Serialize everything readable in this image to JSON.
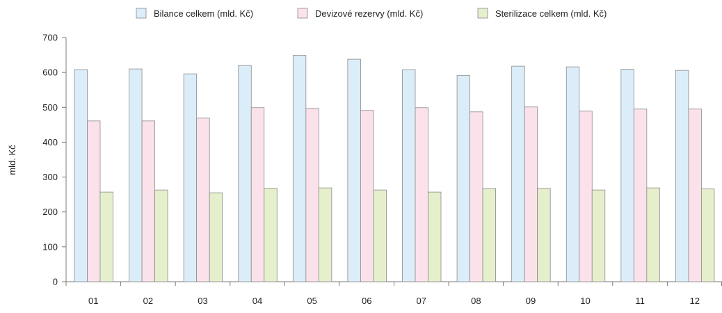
{
  "chart_data": {
    "type": "bar",
    "title": "",
    "xlabel": "",
    "ylabel": "mld. Kč",
    "ylim": [
      0,
      700
    ],
    "y_ticks": [
      "0",
      "100",
      "200",
      "300",
      "400",
      "500",
      "600",
      "700"
    ],
    "categories": [
      "01",
      "02",
      "03",
      "04",
      "05",
      "06",
      "07",
      "08",
      "09",
      "10",
      "11",
      "12"
    ],
    "grid": false,
    "legend_position": "top",
    "series": [
      {
        "name": "Bilance celkem (mld. Kč)",
        "color": "#dcedfa",
        "values": [
          608,
          610,
          596,
          620,
          649,
          638,
          608,
          591,
          618,
          616,
          609,
          606
        ]
      },
      {
        "name": "Devizové rezervy (mld. Kč)",
        "color": "#fbe2ea",
        "values": [
          461,
          461,
          469,
          499,
          497,
          491,
          499,
          487,
          501,
          489,
          495,
          495
        ]
      },
      {
        "name": "Sterilizace celkem (mld. Kč)",
        "color": "#e6efcc",
        "values": [
          257,
          263,
          255,
          268,
          269,
          263,
          257,
          267,
          268,
          263,
          269,
          266
        ]
      }
    ]
  }
}
